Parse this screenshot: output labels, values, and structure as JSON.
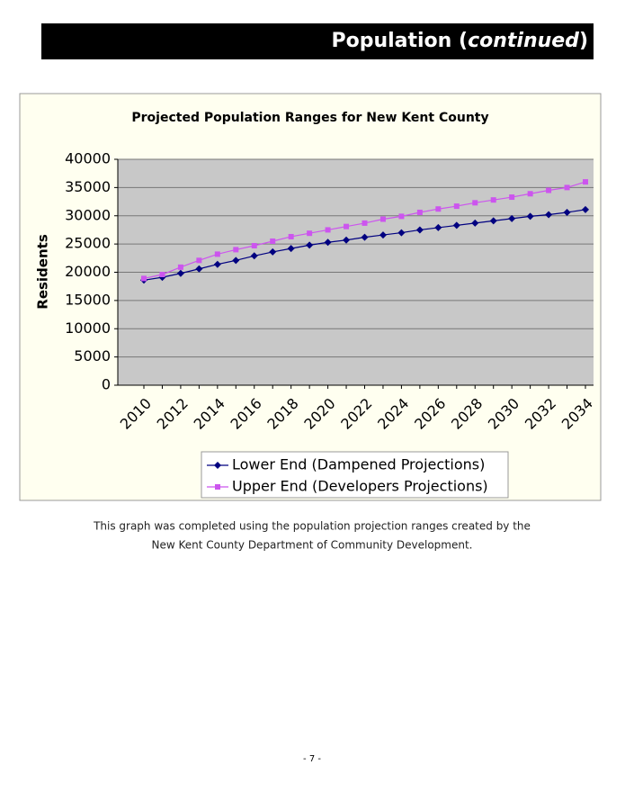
{
  "header": {
    "title_parts": [
      "Population (",
      "continued",
      ")"
    ]
  },
  "chart_data": {
    "type": "line",
    "title": "Projected Population Ranges for New Kent County",
    "y_label": "Residents",
    "categories": [
      "2010",
      null,
      "2012",
      null,
      "2014",
      null,
      "2016",
      null,
      "2018",
      null,
      "2020",
      null,
      "2022",
      null,
      "2024",
      null,
      "2026",
      null,
      "2028",
      null,
      "2030",
      null,
      "2032",
      null,
      "2034"
    ],
    "series": [
      {
        "name": "Lower End (Dampened Projections)",
        "color": "#000080",
        "marker": "diamond",
        "values": [
          18600,
          19100,
          19800,
          20600,
          21400,
          22100,
          22900,
          23600,
          24200,
          24800,
          25300,
          25700,
          26200,
          26600,
          27000,
          27500,
          27900,
          28300,
          28700,
          29100,
          29500,
          29900,
          30200,
          30600,
          31100
        ]
      },
      {
        "name": "Upper End (Developers Projections)",
        "color": "#cc55ee",
        "marker": "square",
        "values": [
          18900,
          19600,
          20900,
          22100,
          23200,
          24000,
          24700,
          25500,
          26300,
          26900,
          27500,
          28100,
          28700,
          29400,
          29900,
          30600,
          31200,
          31700,
          32300,
          32800,
          33300,
          33900,
          34500,
          35000,
          36000
        ]
      }
    ],
    "ylim": [
      0,
      40000
    ],
    "yticks": [
      0,
      5000,
      10000,
      15000,
      20000,
      25000,
      30000,
      35000,
      40000
    ],
    "grid": true,
    "legend": "bottom"
  },
  "caption": [
    "This graph was completed using the population projection ranges created by the",
    "New Kent County Department of Community Development."
  ],
  "page_number": "- 7 -"
}
